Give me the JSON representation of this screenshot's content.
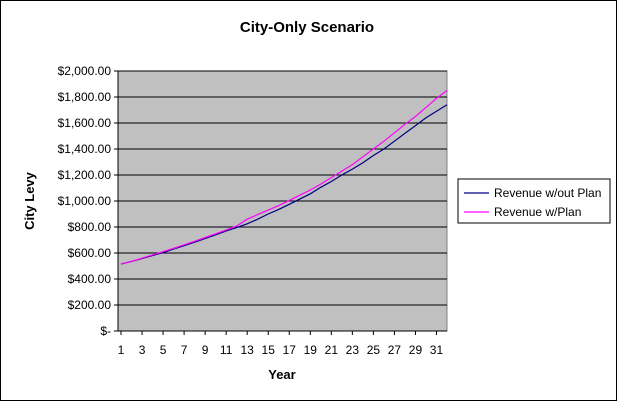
{
  "chart_data": {
    "type": "line",
    "title": "City-Only Scenario",
    "xlabel": "Year",
    "ylabel": "City Levy",
    "xlim": [
      1,
      32
    ],
    "ylim": [
      0,
      2000
    ],
    "grid": true,
    "legend_position": "right",
    "x_tick_labels": [
      "1",
      "3",
      "5",
      "7",
      "9",
      "11",
      "13",
      "15",
      "17",
      "19",
      "21",
      "23",
      "25",
      "27",
      "29",
      "31"
    ],
    "y_tick_labels": [
      "$-",
      "$200.00",
      "$400.00",
      "$600.00",
      "$800.00",
      "$1,000.00",
      "$1,200.00",
      "$1,400.00",
      "$1,600.00",
      "$1,800.00",
      "$2,000.00"
    ],
    "x": [
      1,
      2,
      3,
      4,
      5,
      6,
      7,
      8,
      9,
      10,
      11,
      12,
      13,
      14,
      15,
      16,
      17,
      18,
      19,
      20,
      21,
      22,
      23,
      24,
      25,
      26,
      27,
      28,
      29,
      30,
      31,
      32
    ],
    "series": [
      {
        "name": "Revenue w/out Plan",
        "color": "#000080",
        "values": [
          515,
          535,
          557,
          580,
          604,
          630,
          656,
          683,
          711,
          740,
          770,
          795,
          825,
          860,
          900,
          935,
          975,
          1015,
          1055,
          1105,
          1150,
          1200,
          1245,
          1295,
          1350,
          1400,
          1460,
          1520,
          1580,
          1640,
          1690,
          1740
        ]
      },
      {
        "name": "Revenue w/Plan",
        "color": "#ff00ff",
        "values": [
          515,
          535,
          560,
          585,
          610,
          636,
          663,
          690,
          719,
          748,
          778,
          808,
          860,
          895,
          930,
          965,
          1005,
          1045,
          1085,
          1130,
          1180,
          1230,
          1280,
          1340,
          1400,
          1460,
          1525,
          1590,
          1650,
          1720,
          1790,
          1850
        ]
      }
    ]
  }
}
